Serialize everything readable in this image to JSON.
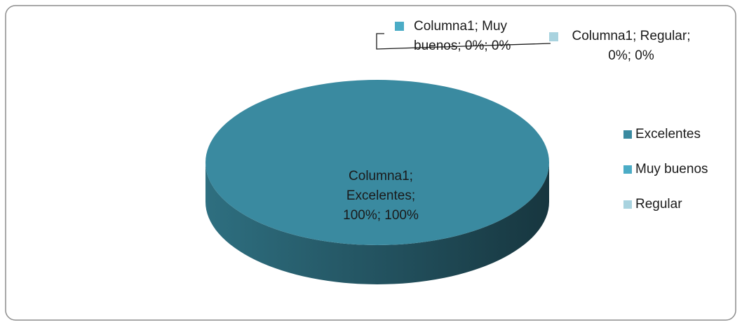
{
  "chart_data": {
    "type": "pie",
    "categories": [
      "Excelentes",
      "Muy buenos",
      "Regular"
    ],
    "values": [
      100,
      0,
      0
    ],
    "value_labels": [
      "Columna1; Excelentes; 100%; 100%",
      "Columna1; Muy buenos; 0%; 0%",
      "Columna1; Regular; 0%; 0%"
    ],
    "colors": [
      "#3a8aa0",
      "#4bacc6",
      "#a9d3df"
    ],
    "legend": "right"
  }
}
